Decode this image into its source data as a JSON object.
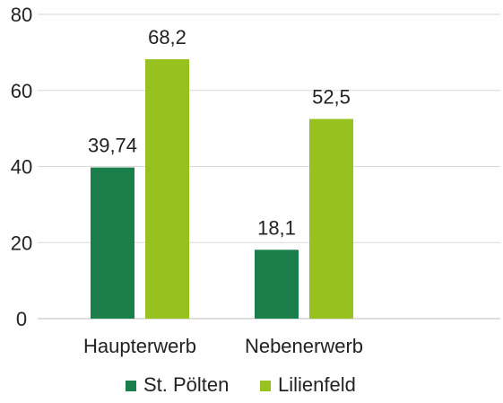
{
  "chart_data": {
    "type": "bar",
    "title": "",
    "xlabel": "",
    "ylabel": "",
    "ylim": [
      0,
      80
    ],
    "yticks": [
      "0",
      "20",
      "40",
      "60",
      "80"
    ],
    "grid": true,
    "legend_position": "bottom",
    "categories": [
      "Haupterwerb",
      "Nebenerwerb"
    ],
    "series": [
      {
        "name": "St. Pölten",
        "color": "#1a7f4b",
        "values": [
          39.74,
          18.1
        ],
        "labels": [
          "39,74",
          "18,1"
        ]
      },
      {
        "name": "Lilienfeld",
        "color": "#97c11f",
        "values": [
          68.2,
          52.5
        ],
        "labels": [
          "68,2",
          "52,5"
        ]
      }
    ]
  }
}
